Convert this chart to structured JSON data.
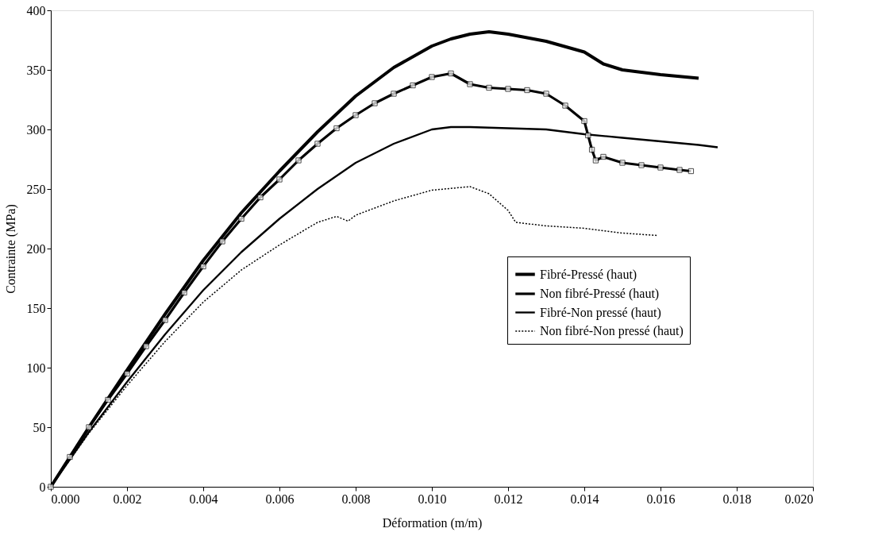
{
  "chart_data": {
    "type": "line",
    "xlabel": "Déformation (m/m)",
    "ylabel": "Contrainte (MPa)",
    "xlim": [
      0,
      0.02
    ],
    "xticks": [
      {
        "value": 0,
        "label": "0.000"
      },
      {
        "value": 0.002,
        "label": "0.002"
      },
      {
        "value": 0.004,
        "label": "0.004"
      },
      {
        "value": 0.006,
        "label": "0.006"
      },
      {
        "value": 0.008,
        "label": "0.008"
      },
      {
        "value": 0.01,
        "label": "0.010"
      },
      {
        "value": 0.012,
        "label": "0.012"
      },
      {
        "value": 0.014,
        "label": "0.014"
      },
      {
        "value": 0.016,
        "label": "0.016"
      },
      {
        "value": 0.018,
        "label": "0.018"
      },
      {
        "value": 0.02,
        "label": "0.020"
      }
    ],
    "ylim": [
      0,
      400
    ],
    "yticks": [
      0,
      50,
      100,
      150,
      200,
      250,
      300,
      350,
      400
    ],
    "grid": false,
    "legend": "right",
    "series": [
      {
        "name": "Fibré-Pressé (haut)",
        "color": "#000000",
        "line_style": "solid",
        "marker": "none",
        "x": [
          0,
          0.001,
          0.002,
          0.003,
          0.004,
          0.005,
          0.006,
          0.007,
          0.008,
          0.009,
          0.01,
          0.0105,
          0.011,
          0.0115,
          0.012,
          0.013,
          0.014,
          0.0145,
          0.015,
          0.016,
          0.017
        ],
        "values": [
          0,
          50,
          98,
          145,
          190,
          230,
          265,
          298,
          328,
          352,
          370,
          376,
          380,
          382,
          380,
          374,
          365,
          355,
          350,
          346,
          343
        ]
      },
      {
        "name": "Non fibré-Pressé (haut)",
        "color": "#000000",
        "line_style": "solid",
        "marker": "square",
        "x": [
          0,
          0.0005,
          0.001,
          0.0015,
          0.002,
          0.0025,
          0.003,
          0.0035,
          0.004,
          0.0045,
          0.005,
          0.0055,
          0.006,
          0.0065,
          0.007,
          0.0075,
          0.008,
          0.0085,
          0.009,
          0.0095,
          0.01,
          0.0105,
          0.011,
          0.0115,
          0.012,
          0.0125,
          0.013,
          0.0135,
          0.014,
          0.0141,
          0.0142,
          0.0143,
          0.0145,
          0.015,
          0.0155,
          0.016,
          0.0165,
          0.0168
        ],
        "values": [
          0,
          25,
          50,
          73,
          95,
          118,
          140,
          163,
          185,
          206,
          225,
          243,
          258,
          274,
          288,
          301,
          312,
          322,
          330,
          337,
          344,
          347,
          338,
          335,
          334,
          333,
          330,
          320,
          307,
          295,
          283,
          274,
          277,
          272,
          270,
          268,
          266,
          265
        ]
      },
      {
        "name": "Fibré-Non pressé (haut)",
        "color": "#000000",
        "line_style": "solid",
        "marker": "none",
        "x": [
          0,
          0.001,
          0.002,
          0.003,
          0.004,
          0.005,
          0.006,
          0.007,
          0.008,
          0.009,
          0.01,
          0.0105,
          0.011,
          0.012,
          0.013,
          0.014,
          0.015,
          0.016,
          0.017,
          0.0175
        ],
        "values": [
          0,
          46,
          88,
          128,
          165,
          197,
          225,
          250,
          272,
          288,
          300,
          302,
          302,
          301,
          300,
          296,
          293,
          290,
          287,
          285
        ]
      },
      {
        "name": "Non fibré-Non pressé (haut)",
        "color": "#000000",
        "line_style": "dotted",
        "marker": "none",
        "x": [
          0,
          0.001,
          0.002,
          0.003,
          0.004,
          0.005,
          0.006,
          0.007,
          0.0075,
          0.0078,
          0.008,
          0.009,
          0.01,
          0.011,
          0.0115,
          0.012,
          0.0122,
          0.013,
          0.014,
          0.015,
          0.0159
        ],
        "values": [
          0,
          45,
          85,
          122,
          155,
          182,
          203,
          222,
          227,
          223,
          228,
          240,
          249,
          252,
          246,
          232,
          222,
          219,
          217,
          213,
          211
        ]
      }
    ]
  }
}
